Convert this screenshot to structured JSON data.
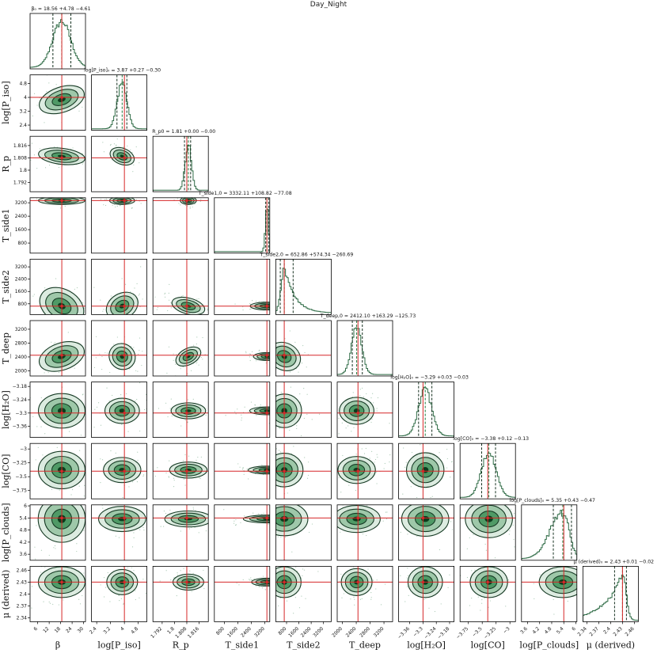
{
  "figure": {
    "title": "Day_Night",
    "colors": {
      "hist": "#2e6b45",
      "contour_fill_outer": "#dcebe0",
      "contour_fill_mid": "#9ec8a9",
      "contour_fill_inner": "#4f9a66",
      "contour_line": "#173b25",
      "core": "#0b3b1c",
      "truth": "#d62728",
      "scatter": "#5a9a6e"
    }
  },
  "chart_data": {
    "type": "corner",
    "params": [
      {
        "name": "β",
        "xlabel": "β",
        "ylabel": "",
        "title": "β₀ = 18.56 +4.78 −4.61",
        "range": [
          2,
          31
        ],
        "ticks": [
          6,
          12,
          18,
          24,
          30
        ],
        "median": 18.56,
        "q16": 13.95,
        "q84": 23.34,
        "truth": 18.6,
        "sigma": 4.7
      },
      {
        "name": "log[P_iso]",
        "xlabel": "log[P_iso]",
        "ylabel": "log[P_iso]",
        "title": "log[P_iso]₀ = 3.87 +0.27 −0.30",
        "range": [
          2.1,
          5.3
        ],
        "ticks": [
          2.4,
          3.2,
          4.0,
          4.8
        ],
        "median": 3.87,
        "q16": 3.57,
        "q84": 4.14,
        "truth": 4.0,
        "sigma": 0.28
      },
      {
        "name": "R_p",
        "xlabel": "R_p",
        "ylabel": "R_p",
        "title": "R_p0 = 1.81 +0.00 −0.00",
        "range": [
          1.786,
          1.822
        ],
        "ticks": [
          1.792,
          1.8,
          1.808,
          1.816
        ],
        "median": 1.809,
        "q16": 1.8065,
        "q84": 1.8105,
        "truth": 1.808,
        "sigma": 0.002
      },
      {
        "name": "T_side1",
        "xlabel": "T_side1",
        "ylabel": "T_side1",
        "title": "T_side1,0 = 3332.11 +108.82 −77.08",
        "range": [
          200,
          3500
        ],
        "ticks": [
          800,
          1600,
          2400,
          3200
        ],
        "median": 3332.11,
        "q16": 3255.03,
        "q84": 3440.93,
        "truth": 3330,
        "sigma": 90
      },
      {
        "name": "T_side2",
        "xlabel": "T_side2",
        "ylabel": "T_side2",
        "title": "T_side2,0 = 652.86 +574.34 −260.69",
        "range": [
          100,
          3700
        ],
        "ticks": [
          800,
          1600,
          2400,
          3200
        ],
        "median": 652.86,
        "q16": 392.17,
        "q84": 1227.2,
        "truth": 650,
        "sigma": 420
      },
      {
        "name": "T_deep",
        "xlabel": "T_deep",
        "ylabel": "T_deep",
        "title": "T_deep,0 = 2412.10 +163.29 −125.73",
        "range": [
          1850,
          3450
        ],
        "ticks": [
          2000,
          2400,
          2800,
          3200
        ],
        "median": 2412.1,
        "q16": 2286.37,
        "q84": 2575.39,
        "truth": 2450,
        "sigma": 150
      },
      {
        "name": "log[H2O]",
        "xlabel": "log[H₂O]",
        "ylabel": "log[H₂O]",
        "title": "log[H₂O]₀ = −3.29 +0.03 −0.03",
        "range": [
          -3.41,
          -3.16
        ],
        "ticks": [
          -3.36,
          -3.3,
          -3.24,
          -3.18
        ],
        "median": -3.29,
        "q16": -3.32,
        "q84": -3.26,
        "truth": -3.3,
        "sigma": 0.03
      },
      {
        "name": "log[CO]",
        "xlabel": "log[CO]",
        "ylabel": "log[CO]",
        "title": "log[CO]₀ = −3.38 +0.12 −0.13",
        "range": [
          -3.9,
          -2.9
        ],
        "ticks": [
          -3.75,
          -3.5,
          -3.25,
          -3.0
        ],
        "median": -3.38,
        "q16": -3.51,
        "q84": -3.26,
        "truth": -3.4,
        "sigma": 0.13
      },
      {
        "name": "log[P_clouds]",
        "xlabel": "log[P_clouds]",
        "ylabel": "log[P_clouds]",
        "title": "log[P_clouds]₀ = 5.35 +0.43 −0.47",
        "range": [
          3.3,
          6.05
        ],
        "ticks": [
          3.6,
          4.2,
          4.8,
          5.4,
          6.0
        ],
        "median": 5.35,
        "q16": 4.88,
        "q84": 5.78,
        "truth": 5.4,
        "sigma": 0.45
      },
      {
        "name": "μ (derived)",
        "xlabel": "μ (derived)",
        "ylabel": "μ (derived)",
        "title": "μ (derived)₀ = 2.43 +0.01 −0.02",
        "range": [
          2.33,
          2.47
        ],
        "ticks": [
          2.34,
          2.37,
          2.4,
          2.43,
          2.46
        ],
        "median": 2.43,
        "q16": 2.41,
        "q84": 2.44,
        "truth": 2.43,
        "sigma": 0.015
      }
    ]
  }
}
